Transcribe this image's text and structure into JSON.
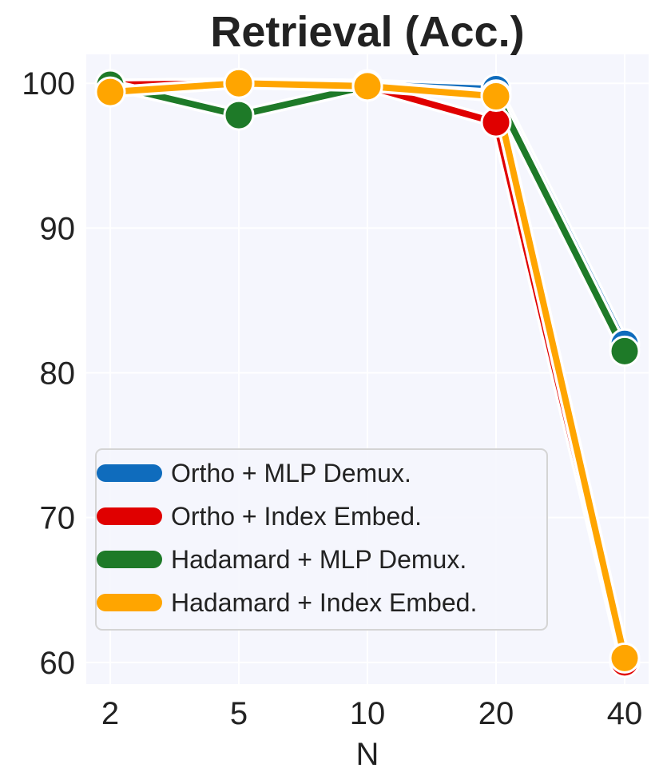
{
  "chart_data": {
    "type": "line",
    "title": "Retrieval (Acc.)",
    "xlabel": "N",
    "ylabel": "",
    "x": [
      "2",
      "5",
      "10",
      "20",
      "40"
    ],
    "ylim": [
      58.5,
      102.0
    ],
    "yticks": [
      60,
      70,
      80,
      90,
      100
    ],
    "grid": true,
    "legend_position": "lower-left",
    "background_color": "#f5f6fd",
    "series": [
      {
        "name": "Ortho + MLP Demux.",
        "color": "#0f6cbd",
        "values": [
          99.9,
          100.0,
          99.9,
          99.6,
          82.0
        ]
      },
      {
        "name": "Ortho + Index Embed.",
        "color": "#e00000",
        "values": [
          99.9,
          100.0,
          99.8,
          97.3,
          60.0
        ]
      },
      {
        "name": "Hadamard + MLP Demux.",
        "color": "#1e7a28",
        "values": [
          99.9,
          97.8,
          99.8,
          99.2,
          81.5
        ]
      },
      {
        "name": "Hadamard + Index Embed.",
        "color": "#ffa500",
        "values": [
          99.4,
          100.0,
          99.8,
          99.1,
          60.3
        ]
      }
    ]
  }
}
